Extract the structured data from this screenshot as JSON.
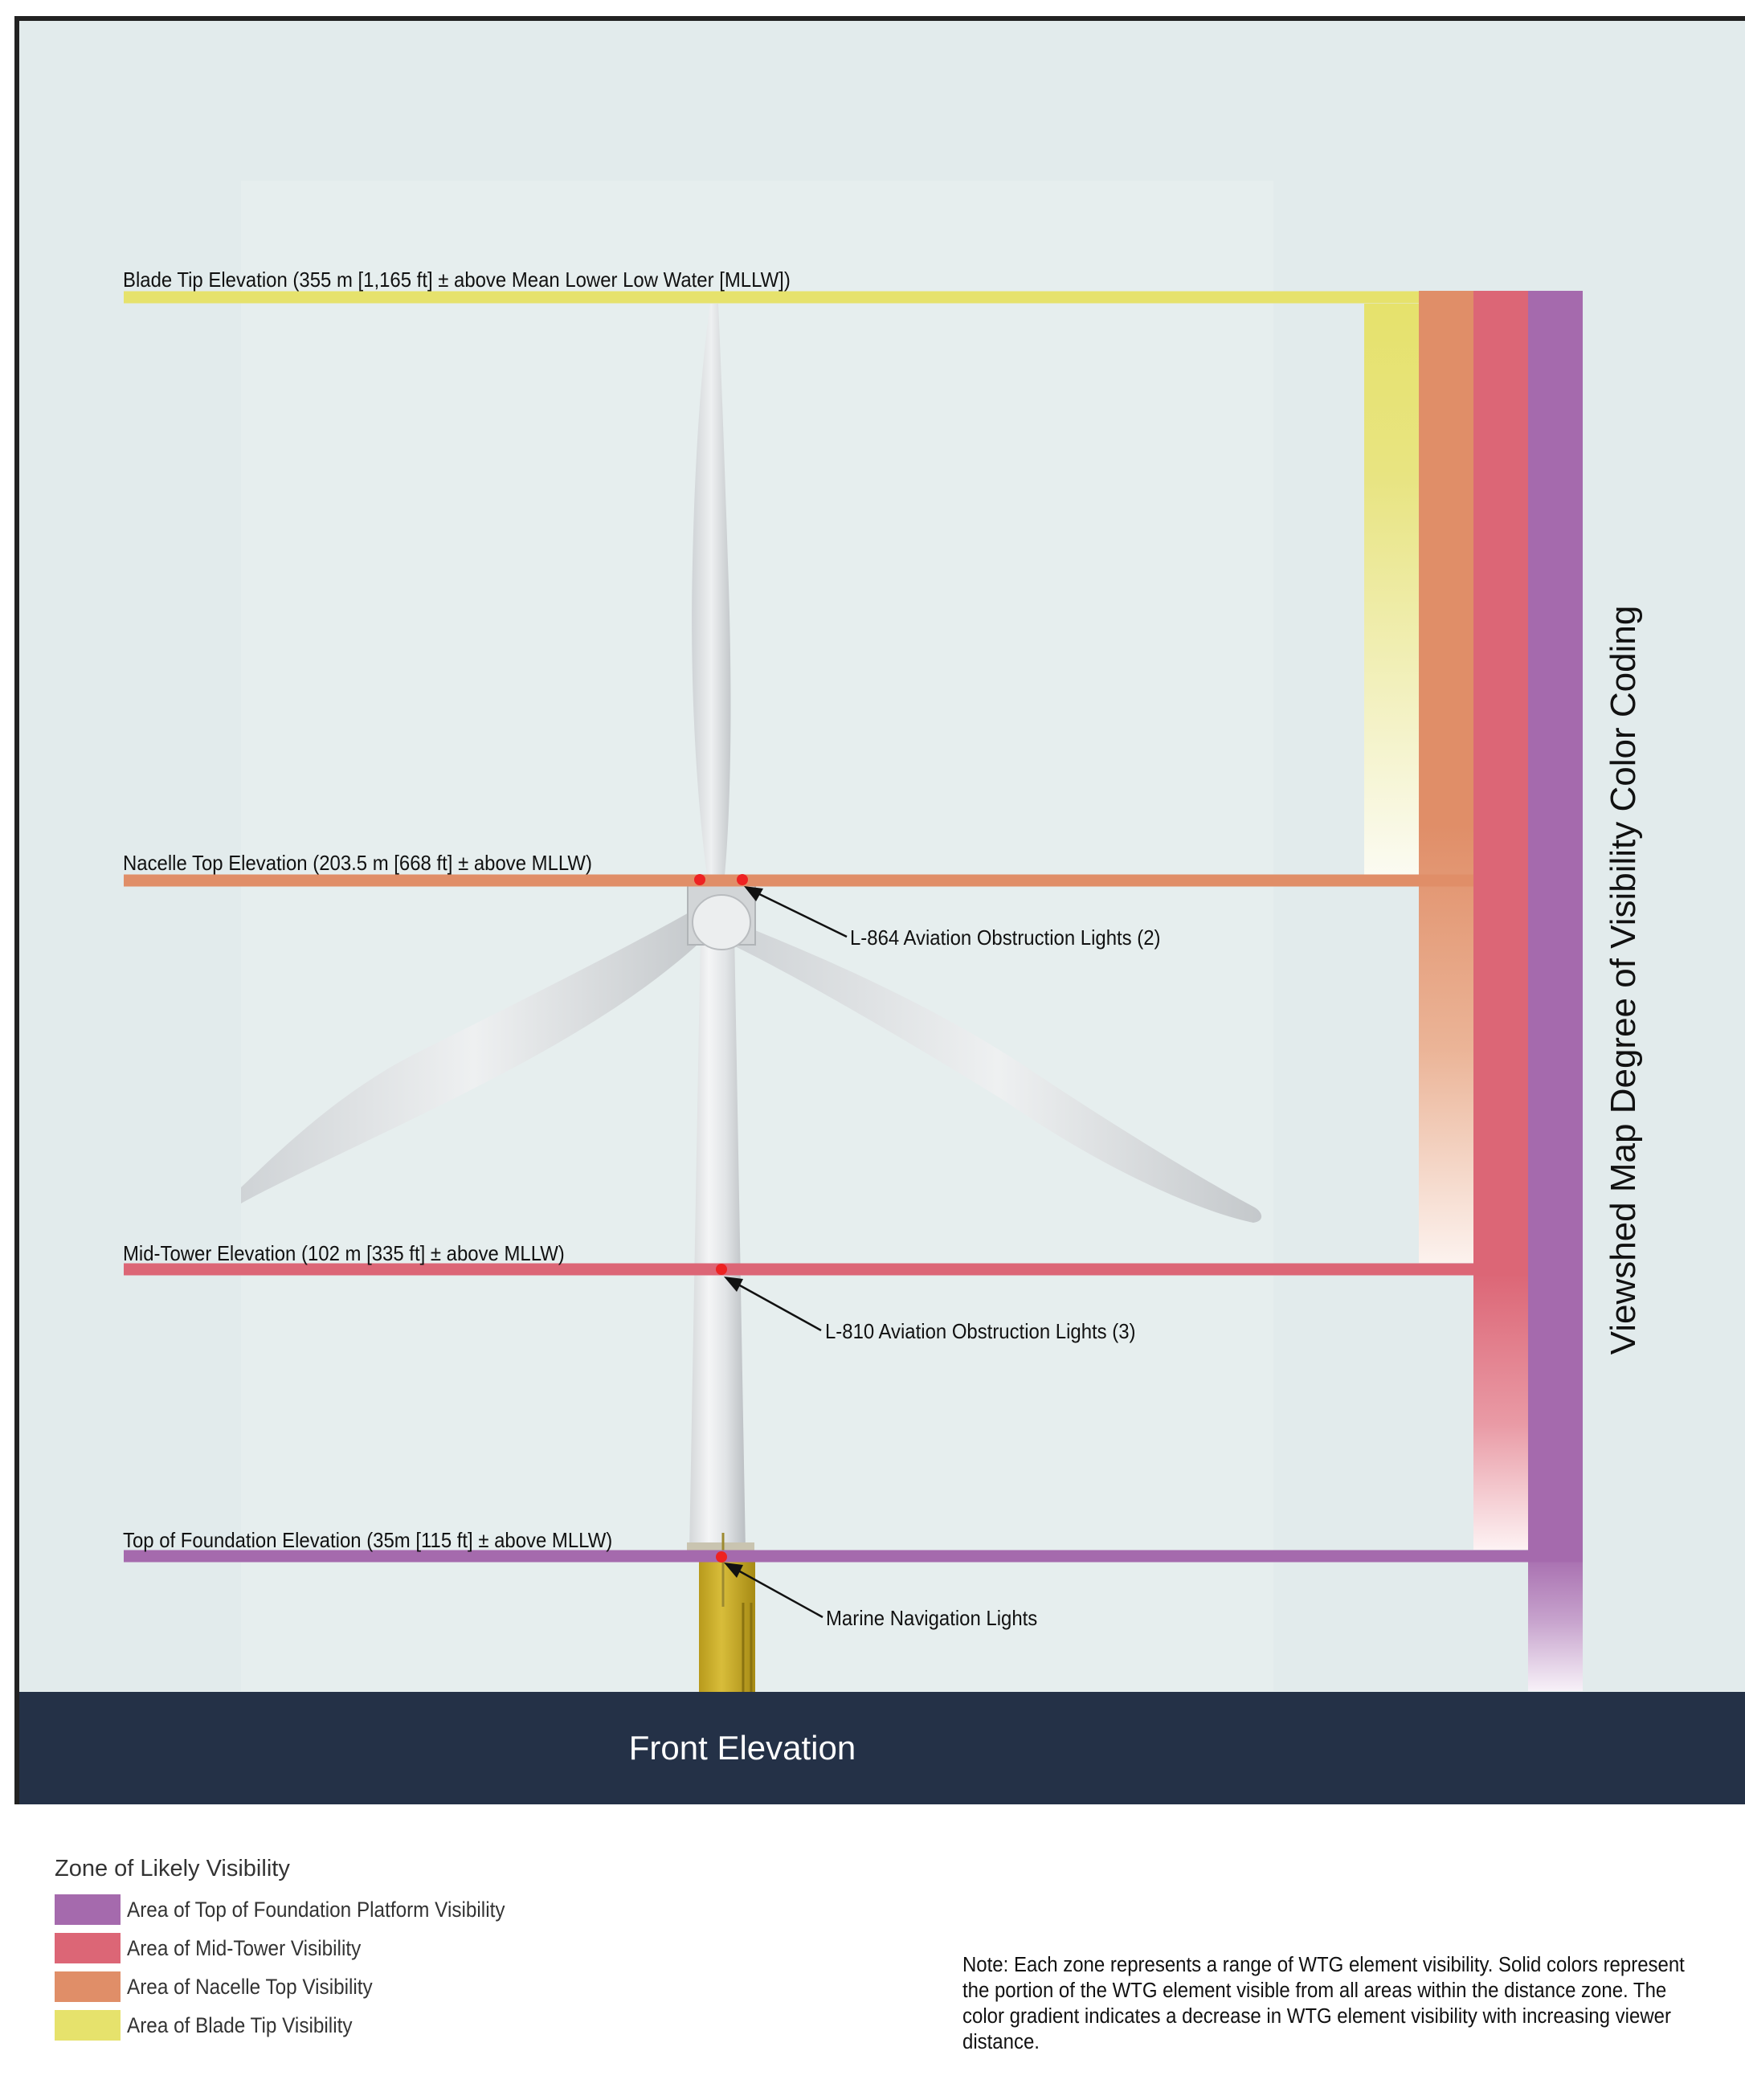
{
  "colors": {
    "foundation": "#a56aad",
    "mid_tower": "#dc6676",
    "nacelle": "#e08e68",
    "blade_tip": "#e6e26c",
    "banner": "#243147",
    "light": "#ee2222"
  },
  "elevations": {
    "blade_tip": "Blade Tip Elevation (355 m [1,165 ft] ± above Mean Lower Low Water [MLLW])",
    "nacelle_top": "Nacelle Top Elevation (203.5 m [668 ft] ± above MLLW)",
    "mid_tower": "Mid-Tower Elevation (102 m [335 ft] ± above MLLW)",
    "foundation_top": "Top of Foundation Elevation (35m [115 ft] ± above MLLW)"
  },
  "callouts": {
    "l864": "L-864 Aviation Obstruction Lights (2)",
    "l810": "L-810 Aviation Obstruction Lights (3)",
    "marine": "Marine Navigation Lights"
  },
  "vertical_title": "Viewshed Map Degree of Visibility Color Coding",
  "banner_title": "Front Elevation",
  "legend": {
    "title": "Zone of Likely Visibility",
    "items": [
      {
        "label": "Area of Top of Foundation Platform Visibility",
        "color": "#a56aad"
      },
      {
        "label": "Area of Mid-Tower Visibility",
        "color": "#dc6676"
      },
      {
        "label": "Area of Nacelle Top Visibility",
        "color": "#e08e68"
      },
      {
        "label": "Area of Blade Tip Visibility",
        "color": "#e6e26c"
      }
    ]
  },
  "note": "Note: Each zone represents a range of WTG element visibility. Solid colors represent the portion of the WTG element visible from all areas within the distance zone. The color gradient indicates a decrease in WTG element visibility with increasing viewer distance."
}
